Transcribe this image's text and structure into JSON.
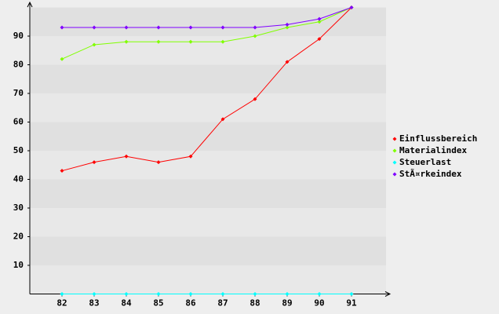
{
  "chart_data": {
    "type": "line",
    "categories": [
      "82",
      "83",
      "84",
      "85",
      "86",
      "87",
      "88",
      "89",
      "90",
      "91"
    ],
    "series": [
      {
        "name": "Einflussbereich",
        "color": "#ff0000",
        "values": [
          43,
          46,
          48,
          46,
          48,
          61,
          68,
          81,
          89,
          100
        ]
      },
      {
        "name": "Materialindex",
        "color": "#80ff00",
        "values": [
          82,
          87,
          88,
          88,
          88,
          88,
          90,
          93,
          95,
          100
        ]
      },
      {
        "name": "Steuerlast",
        "color": "#00ffff",
        "values": [
          0,
          0,
          0,
          0,
          0,
          0,
          0,
          0,
          0,
          0
        ]
      },
      {
        "name": "StÃ¤rkeindex",
        "color": "#8000ff",
        "values": [
          93,
          93,
          93,
          93,
          93,
          93,
          93,
          94,
          96,
          100
        ]
      }
    ],
    "ylim": [
      0,
      100
    ],
    "yticks": [
      10,
      20,
      30,
      40,
      50,
      60,
      70,
      80,
      90
    ],
    "grid": true,
    "legend": "right"
  }
}
